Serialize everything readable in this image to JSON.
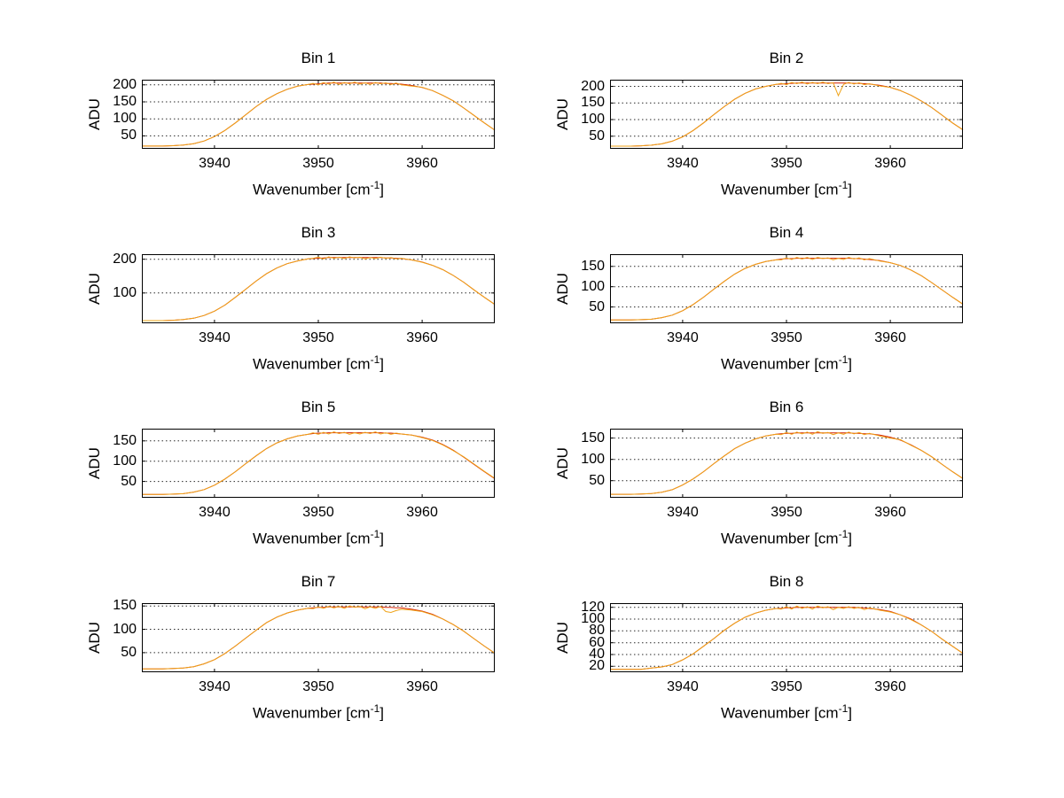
{
  "figure": {
    "background_color": "#ffffff"
  },
  "labels": {
    "ylabel": "ADU",
    "xlabel_pre": "Wavenumber [cm",
    "xlabel_sup": "-1",
    "xlabel_post": "]"
  },
  "chart_data": {
    "type": "line",
    "layout": "4x2 subplot grid",
    "x_label": "Wavenumber [cm^-1]",
    "y_label": "ADU",
    "x_lim": [
      3933,
      3967
    ],
    "x_ticks": [
      3940,
      3950,
      3960
    ],
    "grid": "horizontal dotted gridlines at y ticks",
    "line_colors": [
      "#d42000",
      "#efa318"
    ],
    "x": [
      3933,
      3934,
      3935,
      3936,
      3937,
      3938,
      3939,
      3940,
      3941,
      3942,
      3943,
      3944,
      3945,
      3946,
      3947,
      3948,
      3949,
      3949.5,
      3950,
      3950.5,
      3951,
      3951.5,
      3952,
      3952.5,
      3953,
      3953.5,
      3954,
      3954.5,
      3955,
      3955.5,
      3956,
      3956.5,
      3957,
      3957.5,
      3958,
      3959,
      3960,
      3961,
      3962,
      3963,
      3964,
      3965,
      3966,
      3967
    ],
    "panels": [
      {
        "title": "Bin 1",
        "y_lim": [
          12,
          215
        ],
        "y_ticks": [
          50,
          100,
          150,
          200
        ],
        "series": [
          {
            "name": "red-line",
            "color": "#d42000",
            "y": [
              20,
              20,
              20,
              21,
              23,
              27,
              35,
              48,
              66,
              88,
              112,
              136,
              157,
              174,
              187,
              196,
              201,
              202,
              203,
              204,
              205,
              205,
              205,
              205,
              205,
              205,
              205,
              205,
              205,
              205,
              205,
              204,
              204,
              203,
              202,
              198,
              192,
              183,
              169,
              153,
              132,
              110,
              88,
              67
            ]
          },
          {
            "name": "orange-line",
            "color": "#efa318",
            "y": [
              20,
              20,
              20,
              21,
              23,
              27,
              35,
              48,
              66,
              88,
              112,
              136,
              157,
              174,
              187,
              196,
              201,
              204,
              200,
              207,
              202,
              208,
              201,
              207,
              203,
              208,
              202,
              206,
              201,
              207,
              203,
              206,
              201,
              205,
              200,
              196,
              193,
              183,
              169,
              153,
              132,
              110,
              88,
              67
            ]
          }
        ]
      },
      {
        "title": "Bin 2",
        "y_lim": [
          12,
          220
        ],
        "y_ticks": [
          50,
          100,
          150,
          200
        ],
        "series": [
          {
            "name": "red-line",
            "color": "#d42000",
            "y": [
              20,
              20,
              20,
              21,
              23,
              27,
              35,
              48,
              67,
              90,
              115,
              139,
              161,
              179,
              192,
              200,
              206,
              207,
              208,
              209,
              210,
              210,
              210,
              210,
              210,
              210,
              210,
              210,
              210,
              210,
              210,
              209,
              209,
              208,
              207,
              203,
              197,
              187,
              173,
              156,
              136,
              113,
              90,
              69
            ]
          },
          {
            "name": "orange-line",
            "color": "#efa318",
            "y": [
              20,
              20,
              20,
              21,
              23,
              27,
              35,
              48,
              67,
              90,
              115,
              139,
              161,
              179,
              192,
              200,
              206,
              209,
              205,
              212,
              208,
              213,
              207,
              212,
              208,
              213,
              208,
              211,
              172,
              206,
              212,
              207,
              211,
              205,
              208,
              201,
              197,
              187,
              173,
              156,
              136,
              113,
              90,
              69
            ]
          }
        ]
      },
      {
        "title": "Bin 3",
        "y_lim": [
          10,
          215
        ],
        "y_ticks": [
          100,
          200
        ],
        "series": [
          {
            "name": "red-line",
            "color": "#d42000",
            "y": [
              18,
              18,
              18,
              19,
              21,
              25,
              33,
              46,
              64,
              87,
              111,
              135,
              157,
              174,
              187,
              195,
              201,
              202,
              203,
              204,
              205,
              205,
              205,
              205,
              205,
              205,
              205,
              205,
              205,
              205,
              205,
              204,
              204,
              203,
              202,
              198,
              192,
              182,
              169,
              152,
              132,
              109,
              87,
              66
            ]
          },
          {
            "name": "orange-line",
            "color": "#efa318",
            "y": [
              18,
              18,
              18,
              19,
              21,
              25,
              33,
              46,
              64,
              87,
              111,
              135,
              157,
              174,
              187,
              195,
              201,
              203,
              206,
              201,
              207,
              203,
              206,
              202,
              207,
              204,
              206,
              201,
              205,
              202,
              206,
              203,
              205,
              201,
              203,
              198,
              191,
              182,
              169,
              152,
              132,
              109,
              87,
              66
            ]
          }
        ]
      },
      {
        "title": "Bin 4",
        "y_lim": [
          10,
          180
        ],
        "y_ticks": [
          50,
          100,
          150
        ],
        "series": [
          {
            "name": "red-line",
            "color": "#d42000",
            "y": [
              18,
              18,
              18,
              19,
              20,
              24,
              30,
              41,
              56,
              74,
              94,
              113,
              131,
              145,
              155,
              162,
              166,
              168,
              169,
              169,
              170,
              170,
              170,
              170,
              170,
              170,
              170,
              170,
              170,
              170,
              170,
              169,
              169,
              168,
              167,
              164,
              159,
              152,
              141,
              127,
              110,
              92,
              74,
              57
            ]
          },
          {
            "name": "orange-line",
            "color": "#efa318",
            "y": [
              18,
              18,
              18,
              19,
              20,
              24,
              30,
              41,
              56,
              74,
              94,
              113,
              131,
              145,
              155,
              162,
              166,
              166,
              171,
              167,
              172,
              168,
              172,
              167,
              172,
              169,
              171,
              166,
              170,
              167,
              172,
              168,
              171,
              166,
              169,
              163,
              159,
              152,
              141,
              127,
              110,
              92,
              74,
              57
            ]
          }
        ]
      },
      {
        "title": "Bin 5",
        "y_lim": [
          10,
          180
        ],
        "y_ticks": [
          50,
          100,
          150
        ],
        "series": [
          {
            "name": "red-line",
            "color": "#d42000",
            "y": [
              18,
              18,
              18,
              19,
              20,
              24,
              30,
              41,
              56,
              74,
              94,
              113,
              131,
              145,
              155,
              162,
              166,
              168,
              169,
              169,
              170,
              170,
              170,
              170,
              170,
              170,
              170,
              170,
              170,
              170,
              170,
              169,
              169,
              168,
              167,
              164,
              159,
              152,
              141,
              127,
              110,
              92,
              74,
              57
            ]
          },
          {
            "name": "orange-line",
            "color": "#efa318",
            "y": [
              18,
              18,
              18,
              19,
              20,
              24,
              30,
              41,
              56,
              74,
              94,
              113,
              131,
              145,
              155,
              162,
              166,
              170,
              166,
              171,
              167,
              172,
              168,
              171,
              166,
              170,
              167,
              171,
              168,
              172,
              167,
              170,
              166,
              169,
              167,
              164,
              158,
              151,
              140,
              126,
              111,
              93,
              75,
              58
            ]
          }
        ]
      },
      {
        "title": "Bin 6",
        "y_lim": [
          10,
          172
        ],
        "y_ticks": [
          50,
          100,
          150
        ],
        "series": [
          {
            "name": "red-line",
            "color": "#d42000",
            "y": [
              18,
              18,
              18,
              19,
              20,
              23,
              29,
              40,
              54,
              71,
              90,
              108,
              125,
              138,
              148,
              155,
              159,
              160,
              161,
              161,
              162,
              162,
              162,
              162,
              162,
              162,
              162,
              162,
              162,
              162,
              162,
              161,
              161,
              160,
              160,
              157,
              152,
              145,
              134,
              121,
              106,
              88,
              71,
              55
            ]
          },
          {
            "name": "orange-line",
            "color": "#efa318",
            "y": [
              18,
              18,
              18,
              19,
              20,
              23,
              29,
              40,
              54,
              71,
              90,
              108,
              125,
              138,
              148,
              155,
              159,
              158,
              163,
              159,
              164,
              160,
              164,
              159,
              165,
              161,
              163,
              158,
              162,
              159,
              164,
              160,
              163,
              158,
              161,
              155,
              150,
              146,
              133,
              121,
              106,
              88,
              71,
              55
            ]
          }
        ]
      },
      {
        "title": "Bin 7",
        "y_lim": [
          8,
          156
        ],
        "y_ticks": [
          50,
          100,
          150
        ],
        "series": [
          {
            "name": "red-line",
            "color": "#d42000",
            "y": [
              15,
              15,
              15,
              16,
              17,
              20,
              26,
              35,
              48,
              64,
              81,
              98,
              114,
              126,
              135,
              141,
              145,
              146,
              147,
              147,
              148,
              148,
              148,
              148,
              148,
              148,
              148,
              148,
              148,
              148,
              148,
              147,
              147,
              146,
              146,
              143,
              139,
              132,
              122,
              110,
              96,
              80,
              64,
              49
            ]
          },
          {
            "name": "orange-line",
            "color": "#efa318",
            "y": [
              15,
              15,
              15,
              16,
              17,
              20,
              26,
              35,
              48,
              64,
              81,
              98,
              114,
              126,
              135,
              141,
              145,
              144,
              148,
              145,
              149,
              146,
              149,
              145,
              150,
              147,
              149,
              144,
              148,
              145,
              149,
              138,
              136,
              140,
              143,
              141,
              138,
              131,
              122,
              110,
              96,
              80,
              64,
              49
            ]
          }
        ]
      },
      {
        "title": "Bin 8",
        "y_lim": [
          10,
          127
        ],
        "y_ticks": [
          20,
          40,
          60,
          80,
          100,
          120
        ],
        "series": [
          {
            "name": "red-line",
            "color": "#d42000",
            "y": [
              15,
              15,
              15,
              15,
              17,
              19,
              23,
              31,
              41,
              54,
              67,
              81,
              93,
              103,
              110,
              115,
              118,
              118,
              119,
              119,
              120,
              120,
              120,
              120,
              120,
              120,
              120,
              120,
              120,
              120,
              120,
              120,
              119,
              119,
              118,
              116,
              113,
              107,
              100,
              90,
              79,
              66,
              54,
              42
            ]
          },
          {
            "name": "orange-line",
            "color": "#efa318",
            "y": [
              15,
              15,
              15,
              15,
              17,
              19,
              23,
              31,
              41,
              54,
              67,
              81,
              93,
              103,
              110,
              115,
              118,
              117,
              121,
              117,
              122,
              118,
              121,
              117,
              122,
              119,
              121,
              116,
              120,
              118,
              121,
              118,
              120,
              116,
              119,
              115,
              112,
              107,
              99,
              90,
              79,
              66,
              54,
              42
            ]
          }
        ]
      }
    ]
  }
}
